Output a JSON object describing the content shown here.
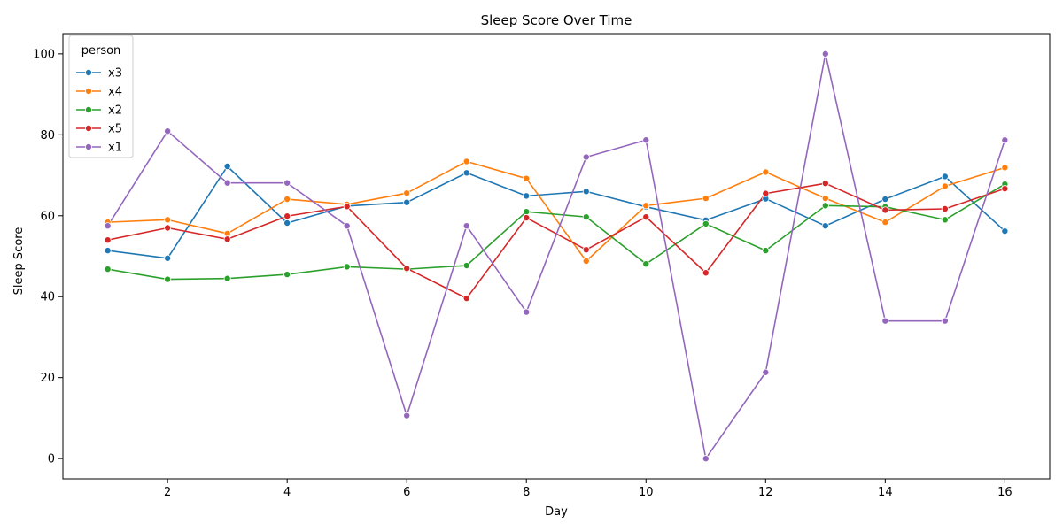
{
  "chart_data": {
    "type": "line",
    "title": "Sleep Score Over Time",
    "xlabel": "Day",
    "ylabel": "Sleep Score",
    "xlim": [
      0.25,
      16.75
    ],
    "ylim": [
      -5,
      105
    ],
    "xticks": [
      2,
      4,
      6,
      8,
      10,
      12,
      14,
      16
    ],
    "yticks": [
      0,
      20,
      40,
      60,
      80,
      100
    ],
    "grid": false,
    "legend_title": "person",
    "legend_position": "top-left",
    "x": [
      1,
      2,
      3,
      4,
      5,
      6,
      7,
      8,
      9,
      10,
      11,
      12,
      13,
      14,
      15,
      16
    ],
    "series": [
      {
        "name": "x3",
        "color": "#1f77b4",
        "values": [
          51.4,
          49.5,
          72.2,
          58.2,
          62.4,
          63.3,
          70.6,
          64.9,
          66.0,
          62.2,
          58.9,
          64.2,
          57.5,
          64.1,
          69.7,
          56.2
        ]
      },
      {
        "name": "x4",
        "color": "#ff7f0e",
        "values": [
          58.4,
          59.0,
          55.6,
          64.1,
          62.8,
          65.6,
          73.4,
          69.2,
          48.8,
          62.5,
          64.3,
          70.8,
          64.3,
          58.4,
          67.3,
          71.9
        ]
      },
      {
        "name": "x2",
        "color": "#2ca02c",
        "values": [
          46.8,
          44.3,
          44.5,
          45.5,
          47.4,
          46.8,
          47.7,
          61.0,
          59.7,
          48.1,
          58.0,
          51.4,
          62.5,
          62.2,
          59.0,
          67.8
        ]
      },
      {
        "name": "x5",
        "color": "#d62728",
        "values": [
          54.0,
          57.0,
          54.2,
          59.9,
          62.3,
          47.0,
          39.6,
          59.5,
          51.6,
          59.7,
          45.9,
          65.5,
          68.0,
          61.4,
          61.7,
          66.7
        ]
      },
      {
        "name": "x1",
        "color": "#9467bd",
        "values": [
          57.5,
          80.9,
          68.1,
          68.1,
          57.5,
          10.6,
          57.5,
          36.2,
          74.5,
          78.7,
          0.0,
          21.3,
          100.0,
          34.0,
          34.0,
          78.7
        ]
      }
    ]
  }
}
